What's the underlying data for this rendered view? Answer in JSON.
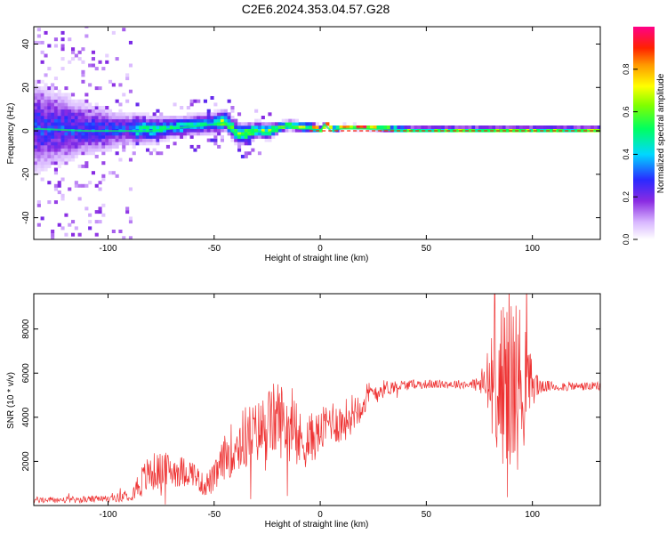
{
  "title": "C2E6.2024.353.04.57.G28",
  "chart_data": [
    {
      "type": "heatmap",
      "xlabel": "Height of straight line (km)",
      "ylabel": "Frequency (Hz)",
      "xlim": [
        -135,
        132
      ],
      "ylim": [
        -50,
        48
      ],
      "xticks": [
        -100,
        -50,
        0,
        50,
        100
      ],
      "yticks": [
        -40,
        -20,
        0,
        20,
        40
      ],
      "colorbar": {
        "label": "Normalized spectral amplitude",
        "range": [
          0,
          1
        ],
        "ticks": [
          0.0,
          0.2,
          0.4,
          0.6,
          0.8
        ],
        "tick_labels": [
          "0.0",
          "0.2",
          "0.4",
          "0.6",
          "0.8"
        ]
      },
      "ridge": {
        "x": [
          -135,
          -110,
          -90,
          -80,
          -70,
          -60,
          -50,
          -45,
          -40,
          -35,
          -30,
          -25,
          -20,
          -15,
          -10,
          -5,
          0,
          2,
          5,
          10,
          20,
          40,
          60,
          80,
          100,
          132
        ],
        "y": [
          1,
          0,
          0,
          0,
          1,
          2,
          3,
          4,
          -2,
          -2,
          0,
          -1,
          1,
          2,
          1,
          1,
          0,
          3,
          0,
          1,
          1,
          0,
          0,
          0,
          0,
          0
        ],
        "spread": [
          18,
          10,
          6,
          5,
          4,
          4,
          4,
          4,
          4,
          4,
          3,
          3,
          2,
          2,
          2,
          2,
          1,
          1,
          1,
          1,
          1,
          1,
          1,
          1,
          1,
          1
        ]
      }
    },
    {
      "type": "line",
      "xlabel": "Height of straight line (km)",
      "ylabel": "SNR (10 * v/v)",
      "xlim": [
        -135,
        132
      ],
      "ylim": [
        0,
        9600
      ],
      "xticks": [
        -100,
        -50,
        0,
        50,
        100
      ],
      "yticks": [
        2000,
        4000,
        6000,
        8000
      ],
      "color": "#ee3333",
      "trend": {
        "x": [
          -135,
          -120,
          -100,
          -90,
          -85,
          -80,
          -70,
          -60,
          -55,
          -50,
          -45,
          -40,
          -35,
          -30,
          -25,
          -20,
          -15,
          -10,
          -5,
          0,
          5,
          10,
          15,
          20,
          25,
          30,
          35,
          40,
          45,
          50,
          55,
          60,
          65,
          70,
          75,
          80,
          85,
          90,
          95,
          100,
          105,
          110,
          120,
          132
        ],
        "y": [
          250,
          250,
          300,
          450,
          1000,
          1500,
          1600,
          1500,
          900,
          1200,
          2200,
          2700,
          3100,
          3300,
          3600,
          4000,
          3600,
          2900,
          3000,
          3300,
          3900,
          3700,
          4200,
          4700,
          5100,
          5300,
          5400,
          5450,
          5500,
          5500,
          5500,
          5500,
          5500,
          5500,
          5500,
          5500,
          5500,
          5500,
          5500,
          5500,
          5400,
          5400,
          5400,
          5400
        ],
        "amplitude": [
          150,
          150,
          150,
          250,
          700,
          900,
          800,
          600,
          500,
          700,
          1000,
          1400,
          1500,
          1400,
          1700,
          1800,
          1600,
          1400,
          1200,
          1000,
          1000,
          1000,
          900,
          800,
          600,
          400,
          300,
          250,
          200,
          200,
          200,
          200,
          200,
          200,
          400,
          2000,
          3500,
          4500,
          3500,
          1000,
          250,
          250,
          200,
          200
        ]
      }
    }
  ]
}
